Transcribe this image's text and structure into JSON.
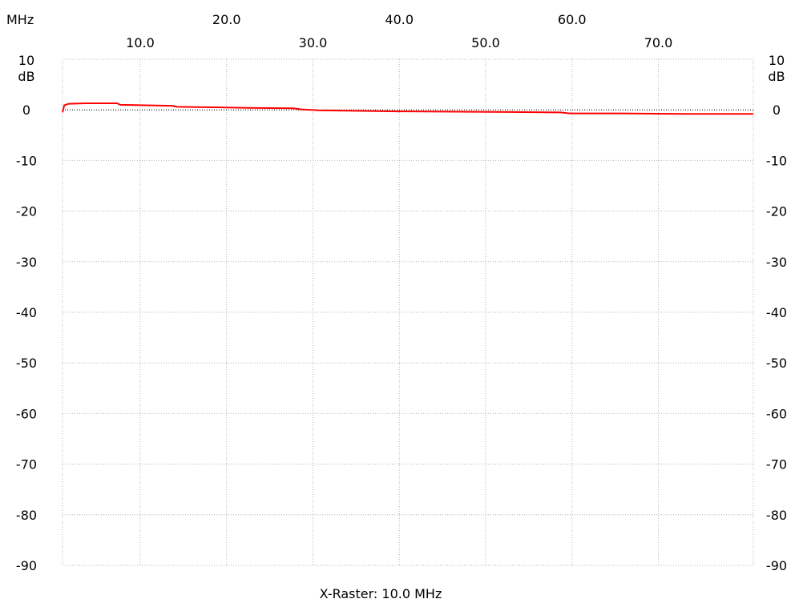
{
  "chart_data": {
    "type": "line",
    "x_unit": "MHz",
    "y_unit": "dB",
    "xlabel": "X-Raster: 10.0 MHz",
    "xlim": [
      0.3,
      80.3
    ],
    "ylim": [
      -90,
      10
    ],
    "grid": true,
    "x_ticks_top_row": [
      "20.0",
      "40.0",
      "60.0"
    ],
    "x_ticks_bottom_row": [
      "10.0",
      "30.0",
      "50.0",
      "70.0"
    ],
    "x_grid_values": [
      9.3,
      19.3,
      29.3,
      39.3,
      49.3,
      59.3,
      69.3
    ],
    "y_ticks": [
      "10",
      "0",
      "-10",
      "-20",
      "-30",
      "-40",
      "-50",
      "-60",
      "-70",
      "-80",
      "-90"
    ],
    "y_tick_values": [
      10,
      0,
      -10,
      -20,
      -30,
      -40,
      -50,
      -60,
      -70,
      -80,
      -90
    ],
    "reference_level": 0,
    "series": [
      {
        "color": "#ff0000",
        "x": [
          0.3,
          0.5,
          1.0,
          3.0,
          6.6,
          7.0,
          10.0,
          13.0,
          13.6,
          18.0,
          22.0,
          27.0,
          28.0,
          30.0,
          35.0,
          39.0,
          40.0,
          50.0,
          58.0,
          59.0,
          65.0,
          72.0,
          80.3
        ],
        "y": [
          -0.5,
          0.9,
          1.2,
          1.3,
          1.3,
          1.0,
          0.9,
          0.8,
          0.6,
          0.5,
          0.4,
          0.3,
          0.1,
          -0.1,
          -0.2,
          -0.3,
          -0.3,
          -0.4,
          -0.5,
          -0.7,
          -0.7,
          -0.8,
          -0.8
        ]
      }
    ]
  }
}
